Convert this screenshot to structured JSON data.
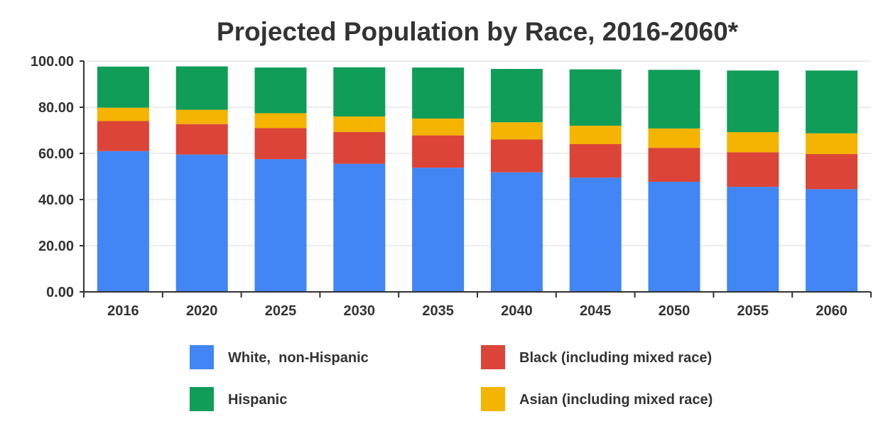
{
  "chart_data": {
    "type": "bar",
    "stacked": true,
    "title": "Projected Population by Race, 2016-2060*",
    "xlabel": "",
    "ylabel": "",
    "ylim": [
      0,
      100
    ],
    "yticks": [
      "0.00",
      "20.00",
      "40.00",
      "60.00",
      "80.00",
      "100.00"
    ],
    "categories": [
      "2016",
      "2020",
      "2025",
      "2030",
      "2035",
      "2040",
      "2045",
      "2050",
      "2055",
      "2060"
    ],
    "grid": true,
    "legend_position": "bottom",
    "series": [
      {
        "name": "White,  non-Hispanic",
        "color": "#4285F4",
        "values": [
          61.0,
          59.5,
          57.5,
          55.5,
          53.8,
          51.8,
          49.5,
          47.7,
          45.5,
          44.5
        ]
      },
      {
        "name": "Black (including mixed race)",
        "color": "#DB4437",
        "values": [
          13.0,
          13.2,
          13.5,
          13.8,
          14.0,
          14.2,
          14.5,
          14.7,
          15.0,
          15.2
        ]
      },
      {
        "name": "Asian (including mixed race)",
        "color": "#F4B400",
        "values": [
          5.8,
          6.2,
          6.4,
          6.7,
          7.3,
          7.5,
          8.0,
          8.4,
          8.7,
          9.0
        ]
      },
      {
        "name": "Hispanic",
        "color": "#0F9D58",
        "values": [
          17.8,
          18.8,
          19.8,
          21.3,
          22.1,
          23.1,
          24.4,
          25.4,
          26.7,
          27.2
        ]
      }
    ],
    "legend_order": [
      0,
      1,
      3,
      2
    ]
  }
}
